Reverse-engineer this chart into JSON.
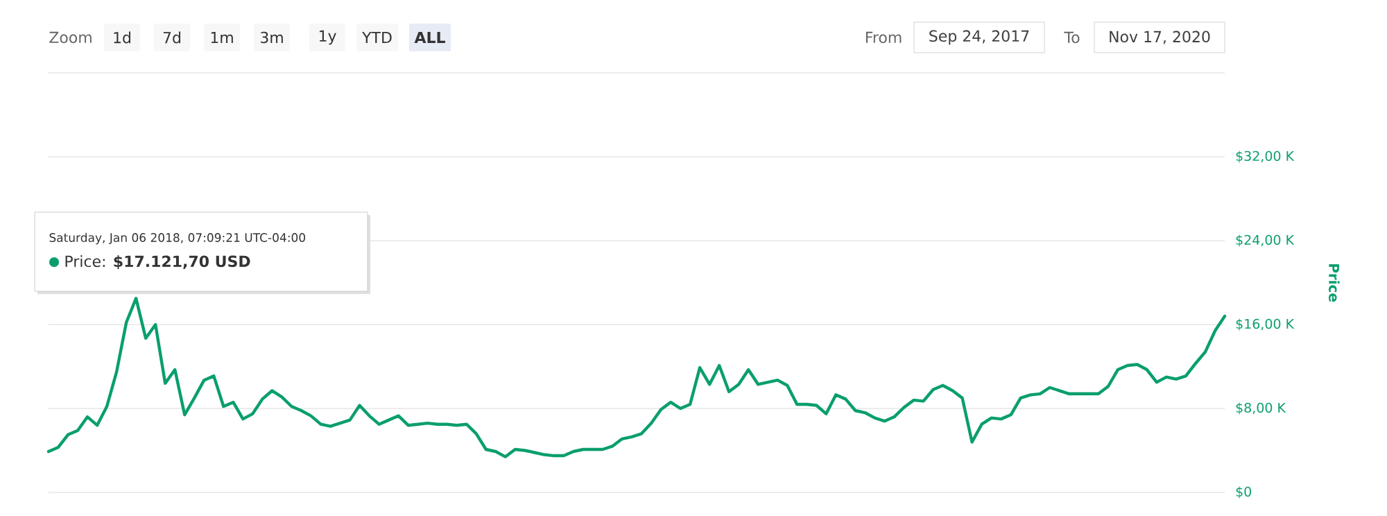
{
  "chart_data": {
    "type": "line",
    "color": "#0a9e6e",
    "line_style": "solid",
    "marker": "none",
    "grid": "y",
    "tick_labels": "y",
    "ylabel": "Price",
    "ylim": [
      0,
      40000
    ],
    "yticks": [
      {
        "value": 0,
        "label": "$0"
      },
      {
        "value": 8000,
        "label": "$8,00 K"
      },
      {
        "value": 16000,
        "label": "$16,00 K"
      },
      {
        "value": 24000,
        "label": "$24,00 K"
      },
      {
        "value": 32000,
        "label": "$32,00 K"
      },
      {
        "value": 40000,
        "label": null
      }
    ],
    "categories": [
      null,
      null,
      null,
      null,
      null,
      null,
      null,
      null,
      null,
      null,
      null,
      null,
      null,
      null,
      null,
      null,
      null,
      null,
      null,
      null,
      null,
      null,
      null,
      null,
      null,
      null,
      null,
      null,
      null,
      null,
      null,
      null,
      null,
      null,
      null,
      null,
      null,
      null,
      null,
      null,
      null,
      null,
      null,
      null,
      null,
      null,
      null,
      null,
      null,
      null,
      null,
      null,
      null,
      null,
      null,
      null,
      null,
      null,
      null,
      null,
      null,
      null,
      null,
      null,
      null,
      null,
      null,
      null,
      null,
      null,
      null,
      null,
      null,
      null,
      null,
      null,
      null,
      null,
      null,
      null,
      null,
      null,
      null,
      null,
      null,
      null,
      null,
      null,
      null,
      null,
      null,
      null,
      null,
      null,
      null,
      null,
      null,
      null,
      null,
      null,
      null,
      null,
      null,
      null,
      null,
      null,
      null,
      null,
      null,
      null,
      null,
      null,
      null,
      null,
      null,
      null,
      null,
      null,
      null,
      null,
      null,
      null
    ],
    "values": [
      3900,
      4300,
      5500,
      5900,
      7200,
      6400,
      8200,
      11500,
      16200,
      18500,
      14700,
      16000,
      10400,
      11700,
      7400,
      9000,
      10700,
      11100,
      8200,
      8600,
      7000,
      7500,
      8900,
      9700,
      9100,
      8200,
      7800,
      7300,
      6500,
      6300,
      6600,
      6900,
      8300,
      7300,
      6500,
      6900,
      7300,
      6400,
      6500,
      6600,
      6500,
      6500,
      6400,
      6500,
      5600,
      4100,
      3900,
      3400,
      4100,
      4000,
      3800,
      3600,
      3500,
      3500,
      3900,
      4100,
      4100,
      4100,
      4400,
      5100,
      5300,
      5600,
      6600,
      7900,
      8600,
      8000,
      8400,
      11900,
      10300,
      12100,
      9600,
      10300,
      11700,
      10300,
      10500,
      10700,
      10200,
      8400,
      8400,
      8300,
      7500,
      9300,
      8900,
      7800,
      7600,
      7100,
      6800,
      7200,
      8100,
      8800,
      8700,
      9800,
      10200,
      9700,
      9000,
      4800,
      6500,
      7100,
      7000,
      7400,
      9000,
      9300,
      9400,
      10000,
      9700,
      9400,
      9400,
      9400,
      9400,
      10100,
      11700,
      12100,
      12200,
      11700,
      10500,
      11000,
      10800,
      11100,
      12300,
      13400,
      15400,
      16800
    ],
    "annotations": [
      "Zoom",
      "1d",
      "7d",
      "1m",
      "3m",
      "1y",
      "YTD",
      "ALL",
      "From",
      "Sep 24, 2017",
      "To",
      "Nov 17, 2020",
      "Saturday, Jan 06 2018, 07:09:21 UTC-04:00",
      "Price: **$17.121,70 USD**"
    ]
  }
}
